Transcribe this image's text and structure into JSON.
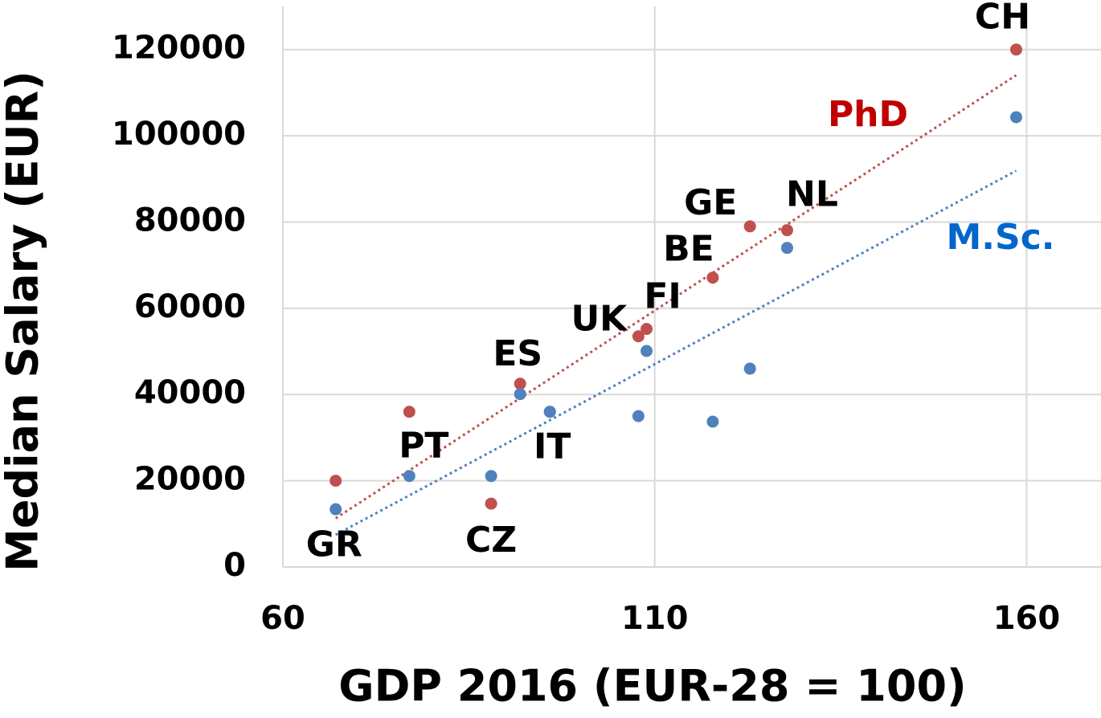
{
  "chart_data": {
    "type": "scatter",
    "xlabel": "GDP 2016 (EUR-28 = 100)",
    "ylabel": "Median Salary (EUR)",
    "point_labels": [
      "GR",
      "PT",
      "CZ",
      "ES",
      "IT",
      "UK",
      "FI",
      "BE",
      "GE",
      "NL",
      "CH"
    ],
    "x": [
      67.1,
      77.0,
      88.0,
      91.9,
      95.9,
      107.8,
      108.9,
      117.8,
      122.8,
      127.8,
      158.6
    ],
    "series": [
      {
        "name": "PhD",
        "color": "#c0504d",
        "label_color": "#c00000",
        "values": [
          20000,
          36000,
          14700,
          42500,
          36000,
          53500,
          55200,
          67100,
          79000,
          78100,
          120000
        ]
      },
      {
        "name": "M.Sc.",
        "color": "#4f81bd",
        "label_color": "#0066cc",
        "values": [
          13400,
          21100,
          21100,
          40100,
          36000,
          35000,
          50100,
          33700,
          46000,
          74000,
          104300
        ]
      }
    ],
    "trendline": "linear",
    "xlim": [
      60,
      170
    ],
    "ylim": [
      0,
      130000
    ],
    "xticks": [
      60,
      110,
      160
    ],
    "yticks": [
      0,
      20000,
      40000,
      60000,
      80000,
      100000,
      120000
    ],
    "grid": true
  }
}
